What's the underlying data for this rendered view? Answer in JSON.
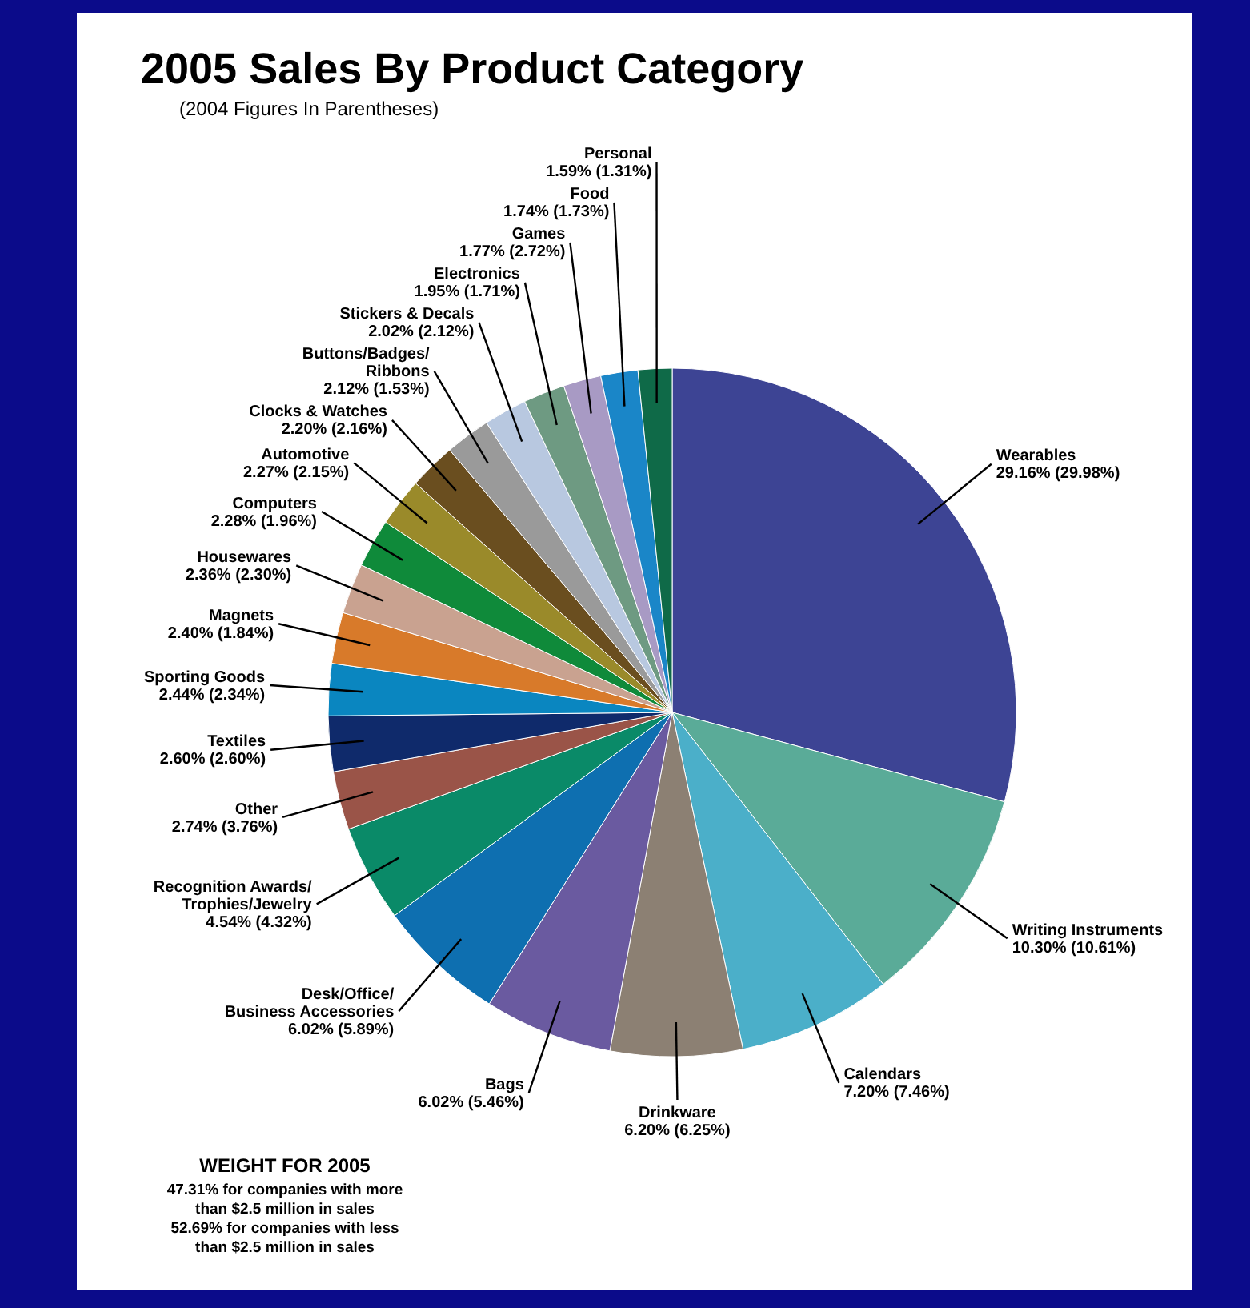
{
  "chart_data": {
    "type": "pie",
    "title": "2005 Sales By Product Category",
    "subtitle": "(2004 Figures In Parentheses)",
    "categories": [
      "Wearables",
      "Writing Instruments",
      "Calendars",
      "Drinkware",
      "Bags",
      "Desk/Office/Business Accessories",
      "Recognition Awards/Trophies/Jewelry",
      "Other",
      "Textiles",
      "Sporting Goods",
      "Magnets",
      "Housewares",
      "Computers",
      "Automotive",
      "Clocks & Watches",
      "Buttons/Badges/Ribbons",
      "Stickers & Decals",
      "Electronics",
      "Games",
      "Food",
      "Personal"
    ],
    "values": [
      29.16,
      10.3,
      7.2,
      6.2,
      6.02,
      6.02,
      4.54,
      2.74,
      2.6,
      2.44,
      2.4,
      2.36,
      2.28,
      2.27,
      2.2,
      2.12,
      2.02,
      1.95,
      1.77,
      1.74,
      1.59
    ],
    "value_labels": [
      "29.16% (29.98%)",
      "10.30% (10.61%)",
      "7.20% (7.46%)",
      "6.20% (6.25%)",
      "6.02% (5.46%)",
      "6.02% (5.89%)",
      "4.54% (4.32%)",
      "2.74% (3.76%)",
      "2.60% (2.60%)",
      "2.44% (2.34%)",
      "2.40% (1.84%)",
      "2.36% (2.30%)",
      "2.28% (1.96%)",
      "2.27% (2.15%)",
      "2.20% (2.16%)",
      "2.12% (1.53%)",
      "2.02% (2.12%)",
      "1.95% (1.71%)",
      "1.77% (2.72%)",
      "1.74% (1.73%)",
      "1.59% (1.31%)"
    ],
    "colors": [
      "#3d4494",
      "#5aab98",
      "#4bafc9",
      "#8c8073",
      "#6a5aa0",
      "#0e6fb0",
      "#0a8a68",
      "#9a5448",
      "#0f2a6b",
      "#0a86c0",
      "#d87a2a",
      "#c9a290",
      "#0f8a3a",
      "#9a8a2a",
      "#6a4e1f",
      "#9a9a9a",
      "#b8c8e0",
      "#6e9a82",
      "#a89ac4",
      "#1a86c8",
      "#0f6a48"
    ],
    "annotations": [
      "WEIGHT FOR 2005",
      "47.31% for companies with more than $2.5 million in sales",
      "52.69% for companies with less than $2.5 million in sales"
    ]
  }
}
